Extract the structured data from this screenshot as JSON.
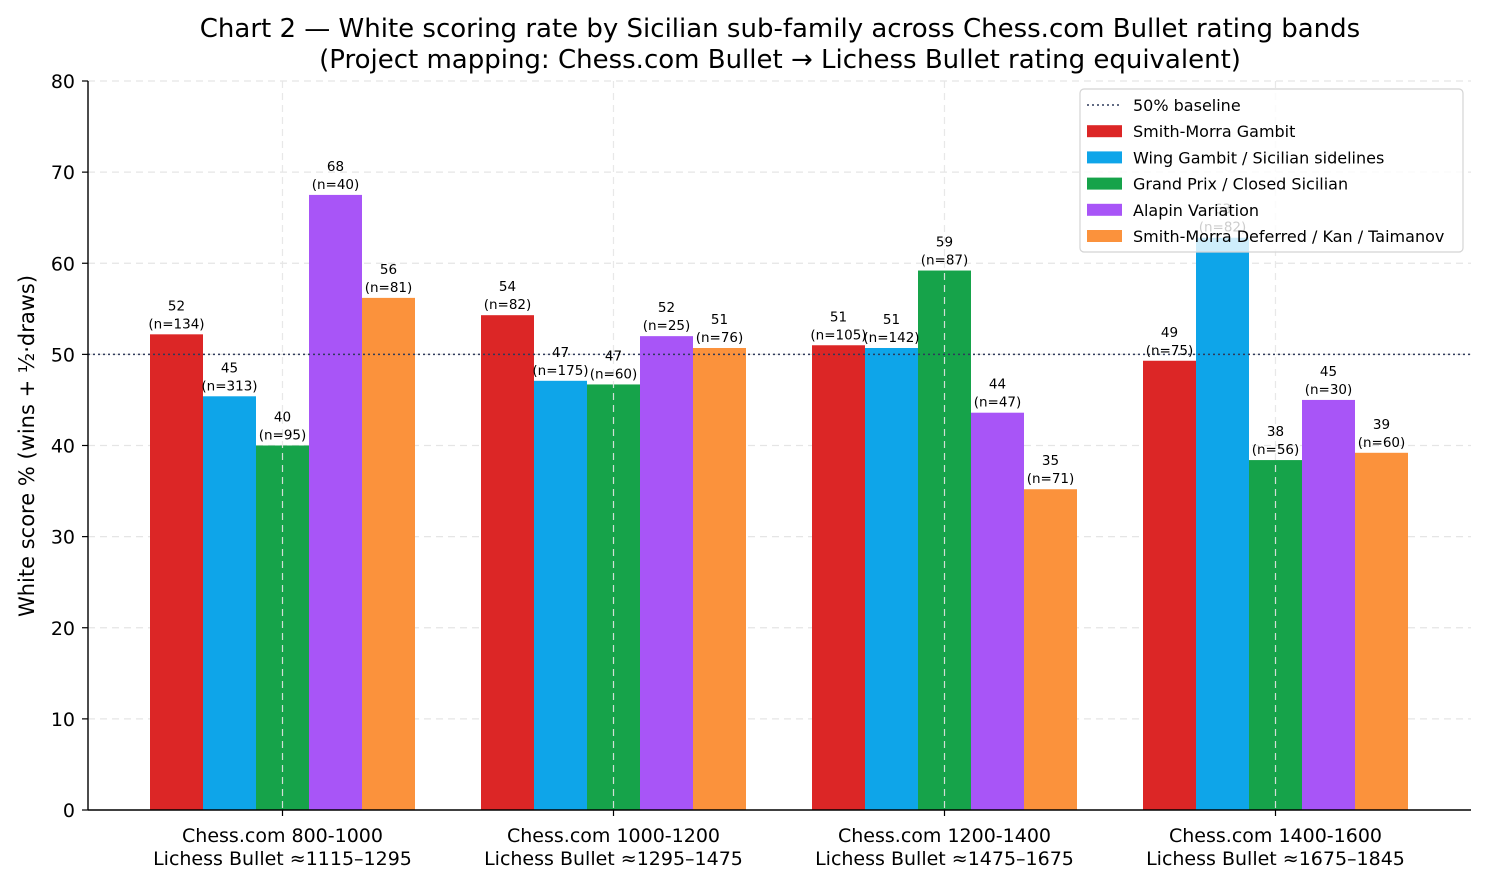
{
  "chart_data": {
    "type": "bar",
    "title": "Chart 2 — White scoring rate by Sicilian sub-family across Chess.com Bullet rating bands",
    "subtitle": "(Project mapping: Chess.com Bullet → Lichess Bullet rating equivalent)",
    "xlabel": "",
    "ylabel": "White score % (wins + ½·draws)",
    "ylim": [
      0,
      80
    ],
    "yticks": [
      0,
      10,
      20,
      30,
      40,
      50,
      60,
      70,
      80
    ],
    "grid": true,
    "legend_position": "top-right",
    "baseline": {
      "label": "50% baseline",
      "value": 50,
      "style": "dotted",
      "color": "#2f3a5a"
    },
    "categories": [
      [
        "Chess.com 800-1000",
        "Lichess Bullet ≈1115–1295"
      ],
      [
        "Chess.com 1000-1200",
        "Lichess Bullet ≈1295–1475"
      ],
      [
        "Chess.com 1200-1400",
        "Lichess Bullet ≈1475–1675"
      ],
      [
        "Chess.com 1400-1600",
        "Lichess Bullet ≈1675–1845"
      ]
    ],
    "series": [
      {
        "name": "Smith-Morra Gambit",
        "color": "#dc2626",
        "values": [
          52.2,
          54.3,
          51.0,
          49.3
        ],
        "value_labels": [
          "52",
          "54",
          "51",
          "49"
        ],
        "n_labels": [
          "(n=134)",
          "(n=82)",
          "(n=105)",
          "(n=75)"
        ]
      },
      {
        "name": "Wing Gambit / Sicilian sidelines",
        "color": "#0ea5e9",
        "values": [
          45.4,
          47.1,
          50.7,
          62.8
        ],
        "value_labels": [
          "45",
          "47",
          "51",
          "63"
        ],
        "n_labels": [
          "(n=313)",
          "(n=175)",
          "(n=142)",
          "(n=82)"
        ]
      },
      {
        "name": "Grand Prix / Closed Sicilian",
        "color": "#16a34a",
        "values": [
          40.0,
          46.7,
          59.2,
          38.4
        ],
        "value_labels": [
          "40",
          "47",
          "59",
          "38"
        ],
        "n_labels": [
          "(n=95)",
          "(n=60)",
          "(n=87)",
          "(n=56)"
        ]
      },
      {
        "name": "Alapin Variation",
        "color": "#a855f7",
        "values": [
          67.5,
          52.0,
          43.6,
          45.0
        ],
        "value_labels": [
          "68",
          "52",
          "44",
          "45"
        ],
        "n_labels": [
          "(n=40)",
          "(n=25)",
          "(n=47)",
          "(n=30)"
        ]
      },
      {
        "name": "Smith-Morra Deferred / Kan / Taimanov",
        "color": "#fb923c",
        "values": [
          56.2,
          50.7,
          35.2,
          39.2
        ],
        "value_labels": [
          "56",
          "51",
          "35",
          "39"
        ],
        "n_labels": [
          "(n=81)",
          "(n=76)",
          "(n=71)",
          "(n=60)"
        ]
      }
    ]
  }
}
